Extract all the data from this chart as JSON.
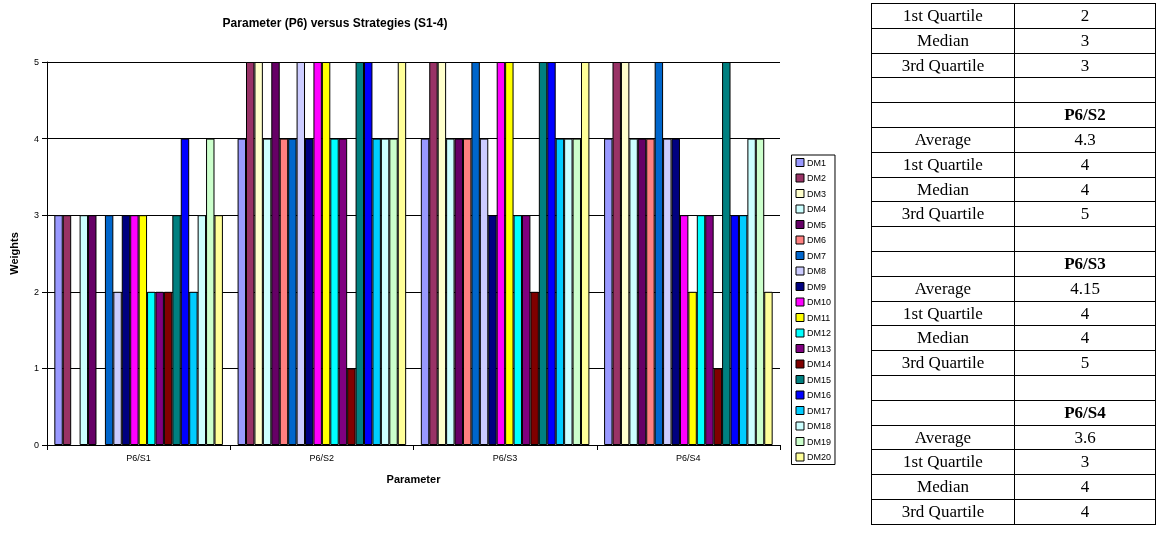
{
  "chart_data": {
    "type": "bar",
    "title": "Parameter (P6) versus Strategies (S1-4)",
    "xlabel": "Parameter",
    "ylabel": "Weights",
    "categories": [
      "P6/S1",
      "P6/S2",
      "P6/S3",
      "P6/S4"
    ],
    "ylim": [
      0,
      5
    ],
    "yticks": [
      0,
      1,
      2,
      3,
      4,
      5
    ],
    "grid": "y",
    "legend": "right",
    "series": [
      {
        "name": "DM1",
        "color": "#9999ff",
        "values": [
          3,
          4,
          4,
          4
        ]
      },
      {
        "name": "DM2",
        "color": "#993366",
        "values": [
          3,
          5,
          5,
          5
        ]
      },
      {
        "name": "DM3",
        "color": "#ffffcc",
        "values": [
          null,
          5,
          5,
          5
        ]
      },
      {
        "name": "DM4",
        "color": "#ccffff",
        "values": [
          3,
          4,
          4,
          4
        ]
      },
      {
        "name": "DM5",
        "color": "#660066",
        "values": [
          3,
          5,
          4,
          4
        ]
      },
      {
        "name": "DM6",
        "color": "#ff8080",
        "values": [
          null,
          4,
          4,
          4
        ]
      },
      {
        "name": "DM7",
        "color": "#0066cc",
        "values": [
          3,
          4,
          5,
          5
        ]
      },
      {
        "name": "DM8",
        "color": "#ccccff",
        "values": [
          2,
          5,
          4,
          4
        ]
      },
      {
        "name": "DM9",
        "color": "#000080",
        "values": [
          3,
          4,
          3,
          4
        ]
      },
      {
        "name": "DM10",
        "color": "#ff00ff",
        "values": [
          3,
          5,
          5,
          3
        ]
      },
      {
        "name": "DM11",
        "color": "#ffff00",
        "values": [
          3,
          5,
          5,
          2
        ]
      },
      {
        "name": "DM12",
        "color": "#00ffff",
        "values": [
          2,
          4,
          3,
          3
        ]
      },
      {
        "name": "DM13",
        "color": "#800080",
        "values": [
          2,
          4,
          3,
          3
        ]
      },
      {
        "name": "DM14",
        "color": "#800000",
        "values": [
          2,
          1,
          2,
          1
        ]
      },
      {
        "name": "DM15",
        "color": "#008080",
        "values": [
          3,
          5,
          5,
          5
        ]
      },
      {
        "name": "DM16",
        "color": "#0000ff",
        "values": [
          4,
          5,
          5,
          3
        ]
      },
      {
        "name": "DM17",
        "color": "#00ccff",
        "values": [
          2,
          4,
          4,
          3
        ]
      },
      {
        "name": "DM18",
        "color": "#ccffff",
        "values": [
          3,
          4,
          4,
          4
        ]
      },
      {
        "name": "DM19",
        "color": "#ccffcc",
        "values": [
          4,
          4,
          4,
          4
        ]
      },
      {
        "name": "DM20",
        "color": "#ffff99",
        "values": [
          3,
          5,
          5,
          2
        ]
      }
    ],
    "annotations": [
      "1st Quartile",
      "2",
      "Median",
      "3",
      "3rd Quartile",
      "3",
      "P6/S2",
      "Average",
      "4.3",
      "1st Quartile",
      "4",
      "Median",
      "4",
      "3rd Quartile",
      "5",
      "P6/S3",
      "Average",
      "4.15",
      "1st Quartile",
      "4",
      "Median",
      "4",
      "3rd Quartile",
      "5",
      "P6/S4",
      "Average",
      "3.6",
      "1st Quartile",
      "3",
      "Median",
      "4",
      "3rd Quartile",
      "4"
    ]
  }
}
